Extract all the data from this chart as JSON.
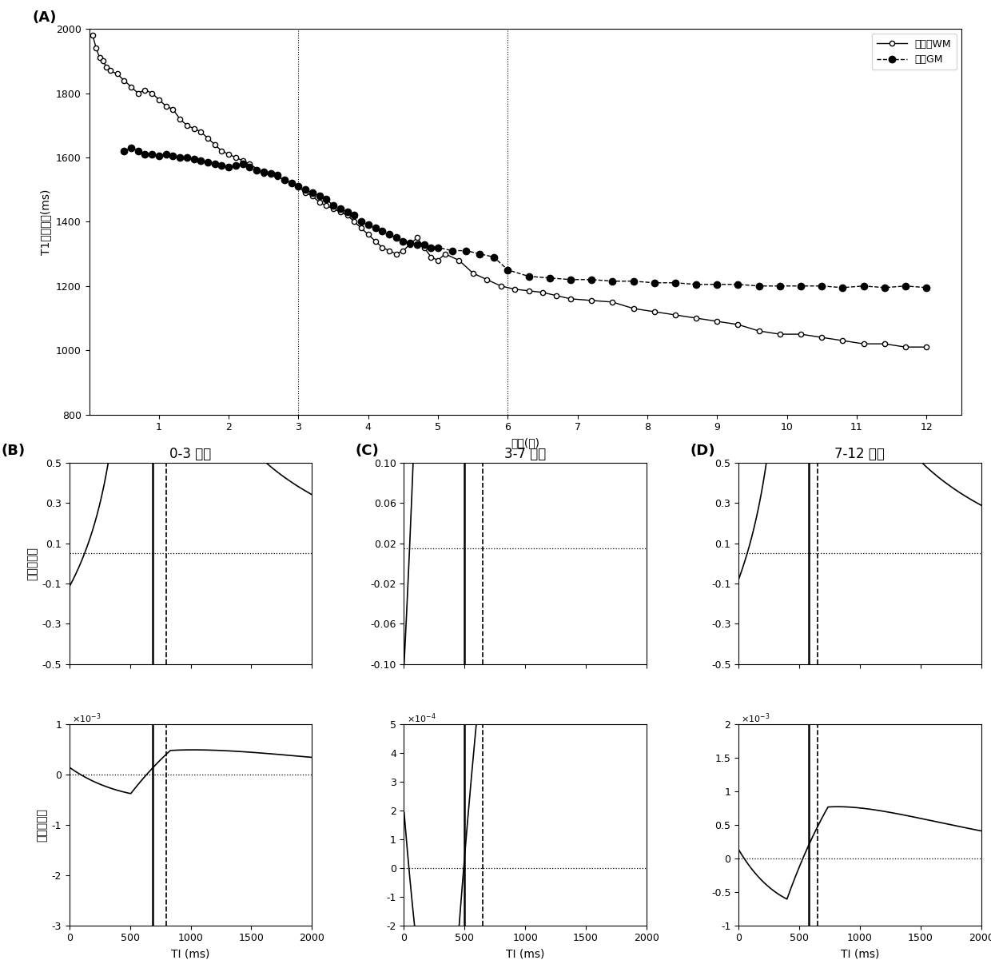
{
  "panel_A": {
    "ylabel": "T1弛豫时间(ms)",
    "xlabel": "年龄(月)",
    "ylim": [
      800,
      2000
    ],
    "xlim": [
      0,
      12.5
    ],
    "yticks": [
      800,
      1000,
      1200,
      1400,
      1600,
      1800,
      2000
    ],
    "xticks": [
      1,
      2,
      3,
      4,
      5,
      6,
      7,
      8,
      9,
      10,
      11,
      12
    ],
    "vlines": [
      3,
      6
    ],
    "legend1": "皮层下WM",
    "legend2": "皮层GM",
    "WM_x": [
      0.05,
      0.1,
      0.15,
      0.2,
      0.25,
      0.3,
      0.4,
      0.5,
      0.6,
      0.7,
      0.8,
      0.9,
      1.0,
      1.1,
      1.2,
      1.3,
      1.4,
      1.5,
      1.6,
      1.7,
      1.8,
      1.9,
      2.0,
      2.1,
      2.2,
      2.3,
      2.5,
      2.7,
      2.9,
      3.0,
      3.1,
      3.2,
      3.3,
      3.4,
      3.5,
      3.6,
      3.7,
      3.8,
      3.9,
      4.0,
      4.1,
      4.2,
      4.3,
      4.4,
      4.5,
      4.6,
      4.7,
      4.8,
      4.9,
      5.0,
      5.1,
      5.3,
      5.5,
      5.7,
      5.9,
      6.1,
      6.3,
      6.5,
      6.7,
      6.9,
      7.2,
      7.5,
      7.8,
      8.1,
      8.4,
      8.7,
      9.0,
      9.3,
      9.6,
      9.9,
      10.2,
      10.5,
      10.8,
      11.1,
      11.4,
      11.7,
      12.0
    ],
    "WM_y": [
      1980,
      1940,
      1910,
      1900,
      1880,
      1870,
      1860,
      1840,
      1820,
      1800,
      1810,
      1800,
      1780,
      1760,
      1750,
      1720,
      1700,
      1690,
      1680,
      1660,
      1640,
      1620,
      1610,
      1600,
      1590,
      1580,
      1550,
      1540,
      1520,
      1510,
      1490,
      1480,
      1460,
      1450,
      1440,
      1430,
      1420,
      1400,
      1380,
      1360,
      1340,
      1320,
      1310,
      1300,
      1310,
      1330,
      1350,
      1320,
      1290,
      1280,
      1300,
      1280,
      1240,
      1220,
      1200,
      1190,
      1185,
      1180,
      1170,
      1160,
      1155,
      1150,
      1130,
      1120,
      1110,
      1100,
      1090,
      1080,
      1060,
      1050,
      1050,
      1040,
      1030,
      1020,
      1020,
      1010,
      1010
    ],
    "GM_x": [
      0.5,
      0.6,
      0.7,
      0.8,
      0.9,
      1.0,
      1.1,
      1.2,
      1.3,
      1.4,
      1.5,
      1.6,
      1.7,
      1.8,
      1.9,
      2.0,
      2.1,
      2.2,
      2.3,
      2.4,
      2.5,
      2.6,
      2.7,
      2.8,
      2.9,
      3.0,
      3.1,
      3.2,
      3.3,
      3.4,
      3.5,
      3.6,
      3.7,
      3.8,
      3.9,
      4.0,
      4.1,
      4.2,
      4.3,
      4.4,
      4.5,
      4.6,
      4.7,
      4.8,
      4.9,
      5.0,
      5.2,
      5.4,
      5.6,
      5.8,
      6.0,
      6.3,
      6.6,
      6.9,
      7.2,
      7.5,
      7.8,
      8.1,
      8.4,
      8.7,
      9.0,
      9.3,
      9.6,
      9.9,
      10.2,
      10.5,
      10.8,
      11.1,
      11.4,
      11.7,
      12.0
    ],
    "GM_y": [
      1620,
      1630,
      1620,
      1610,
      1610,
      1605,
      1610,
      1605,
      1600,
      1600,
      1595,
      1590,
      1585,
      1580,
      1575,
      1570,
      1575,
      1580,
      1570,
      1560,
      1555,
      1550,
      1545,
      1530,
      1520,
      1510,
      1500,
      1490,
      1480,
      1470,
      1450,
      1440,
      1430,
      1420,
      1400,
      1390,
      1380,
      1370,
      1360,
      1350,
      1340,
      1335,
      1330,
      1330,
      1320,
      1320,
      1310,
      1310,
      1300,
      1290,
      1250,
      1230,
      1225,
      1220,
      1220,
      1215,
      1215,
      1210,
      1210,
      1205,
      1205,
      1205,
      1200,
      1200,
      1200,
      1200,
      1195,
      1200,
      1195,
      1200,
      1195
    ]
  },
  "panels_BCD": {
    "B": {
      "title": "0-3 月龄",
      "T1_WM": 750,
      "T1_GM": 1450,
      "TR": 3000,
      "TI_null_WM": 519,
      "T1_opt_solid": 690,
      "T1_opt_dashed": 800,
      "rel_ylim": [
        -0.5,
        0.5
      ],
      "rel_yticks": [
        -0.5,
        -0.3,
        -0.1,
        0.1,
        0.3,
        0.5
      ],
      "rel_hline": 0.05,
      "abs_ylim": [
        -0.003,
        0.001
      ],
      "abs_yticks": [
        -3,
        -2,
        -1,
        0,
        1
      ],
      "abs_scale": 0.001,
      "abs_hline": 0.0
    },
    "C": {
      "title": "3-7 月龄",
      "T1_WM": 490,
      "T1_GM": 1300,
      "TR": 3000,
      "TI_null_WM": 339,
      "T1_opt_solid": 500,
      "T1_opt_dashed": 650,
      "rel_ylim": [
        -0.1,
        0.1
      ],
      "rel_yticks": [
        -0.1,
        -0.06,
        -0.02,
        0.02,
        0.06,
        0.1
      ],
      "rel_hline": 0.015,
      "abs_ylim": [
        -0.0002,
        0.0005
      ],
      "abs_yticks": [
        -2,
        -1,
        0,
        1,
        2,
        3,
        4,
        5
      ],
      "abs_scale": 0.0001,
      "abs_hline": 0.0
    },
    "D": {
      "title": "7-12 月龄",
      "T1_WM": 580,
      "T1_GM": 1200,
      "TR": 3000,
      "TI_null_WM": 402,
      "T1_opt_solid": 580,
      "T1_opt_dashed": 650,
      "rel_ylim": [
        -0.5,
        0.5
      ],
      "rel_yticks": [
        -0.5,
        -0.3,
        -0.1,
        0.1,
        0.3,
        0.5
      ],
      "rel_hline": 0.05,
      "abs_ylim": [
        -0.001,
        0.002
      ],
      "abs_yticks": [
        -1,
        -0.5,
        0,
        0.5,
        1,
        1.5,
        2
      ],
      "abs_scale": 0.001,
      "abs_hline": 0.0
    }
  },
  "TI_range": [
    0,
    2000
  ],
  "label_fontsize": 10,
  "tick_fontsize": 9,
  "title_fontsize": 12
}
